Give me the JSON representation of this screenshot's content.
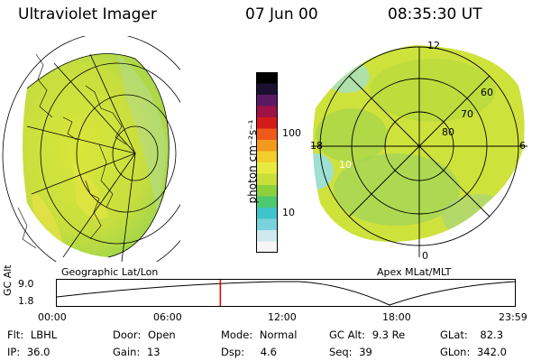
{
  "header": {
    "instrument": "Ultraviolet Imager",
    "date": "07 Jun 00",
    "time": "08:35:30 UT"
  },
  "panels": {
    "left_label": "Geographic Lat/Lon",
    "right_label": "Apex MLat/MLT"
  },
  "colorbar": {
    "unit_label": "photon cm⁻²s⁻¹",
    "ticks": [
      "100",
      "10"
    ],
    "colors": [
      "#f6f6f6",
      "#cfe9ee",
      "#79d3dd",
      "#3fc4c9",
      "#4cc86f",
      "#8cd13c",
      "#c7de3b",
      "#e9ea40",
      "#f1ce2c",
      "#f29a1d",
      "#ee5a1a",
      "#d41a1a",
      "#9e1246",
      "#5a1a62",
      "#1c1030",
      "#000000"
    ]
  },
  "polar_right": {
    "lat_labels": [
      "60",
      "70",
      "80"
    ],
    "mlt_labels": [
      "12",
      "18",
      "6",
      "0"
    ],
    "extra_label": "10"
  },
  "timeline": {
    "y_axis_label": "GC Alt",
    "y_ticks": [
      "9.0",
      "1.8"
    ],
    "x_ticks": [
      "00:00",
      "06:00",
      "12:00",
      "18:00",
      "23:59"
    ],
    "marker_time_fraction": 0.357,
    "marker_color": "#e00000"
  },
  "info": {
    "row1": {
      "flt_label": "Flt:",
      "flt_value": "LBHL",
      "door_label": "Door:",
      "door_value": "Open",
      "mode_label": "Mode:",
      "mode_value": "Normal",
      "gcalt_label": "GC Alt:",
      "gcalt_value": "9.3 Re",
      "glat_label": "GLat:",
      "glat_value": "82.3"
    },
    "row2": {
      "ip_label": "IP:",
      "ip_value": "36.0",
      "gain_label": "Gain:",
      "gain_value": "13",
      "dsp_label": "Dsp:",
      "dsp_value": "4.6",
      "seq_label": "Seq:",
      "seq_value": "39",
      "glon_label": "GLon:",
      "glon_value": "342.0"
    }
  }
}
